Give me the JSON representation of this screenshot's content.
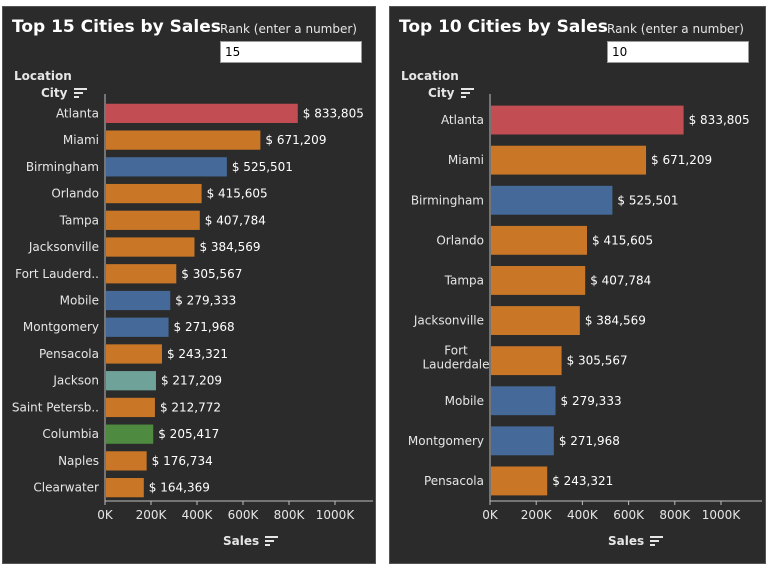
{
  "panels": [
    {
      "title": "Top 15 Cities by Sales",
      "rank_label": "Rank (enter a number)",
      "rank_value": "15",
      "row_header_group": "Location",
      "row_header_field": "City",
      "x_axis_title": "Sales"
    },
    {
      "title": "Top 10 Cities by Sales",
      "rank_label": "Rank (enter a number)",
      "rank_value": "10",
      "row_header_group": "Location",
      "row_header_field": "City",
      "x_axis_title": "Sales"
    }
  ],
  "colors": {
    "Georgia": "#c24d52",
    "Florida": "#c97727",
    "Alabama": "#456a9a",
    "Mississippi": "#6fa39a",
    "South Carolina": "#4e8a40"
  },
  "chart_data": [
    {
      "type": "bar",
      "orientation": "horizontal",
      "title": "Top 15 Cities by Sales",
      "xlabel": "Sales",
      "ylabel": "City",
      "xlim": [
        0,
        1000000
      ],
      "xticks": [
        "0K",
        "200K",
        "400K",
        "600K",
        "800K",
        "1000K"
      ],
      "categories": [
        "Atlanta",
        "Miami",
        "Birmingham",
        "Orlando",
        "Tampa",
        "Jacksonville",
        "Fort Lauderd..",
        "Mobile",
        "Montgomery",
        "Pensacola",
        "Jackson",
        "Saint Petersb..",
        "Columbia",
        "Naples",
        "Clearwater"
      ],
      "values": [
        833805,
        671209,
        525501,
        415605,
        407784,
        384569,
        305567,
        279333,
        271968,
        243321,
        217209,
        212772,
        205417,
        176734,
        164369
      ],
      "data_labels": [
        "$ 833,805",
        "$ 671,209",
        "$ 525,501",
        "$ 415,605",
        "$ 407,784",
        "$ 384,569",
        "$ 305,567",
        "$ 279,333",
        "$ 271,968",
        "$ 243,321",
        "$ 217,209",
        "$ 212,772",
        "$ 205,417",
        "$ 176,734",
        "$ 164,369"
      ],
      "color_groups": [
        "Georgia",
        "Florida",
        "Alabama",
        "Florida",
        "Florida",
        "Florida",
        "Florida",
        "Alabama",
        "Alabama",
        "Florida",
        "Mississippi",
        "Florida",
        "South Carolina",
        "Florida",
        "Florida"
      ]
    },
    {
      "type": "bar",
      "orientation": "horizontal",
      "title": "Top 10 Cities by Sales",
      "xlabel": "Sales",
      "ylabel": "City",
      "xlim": [
        0,
        1000000
      ],
      "xticks": [
        "0K",
        "200K",
        "400K",
        "600K",
        "800K",
        "1000K"
      ],
      "categories": [
        "Atlanta",
        "Miami",
        "Birmingham",
        "Orlando",
        "Tampa",
        "Jacksonville",
        "Fort Lauderdale",
        "Mobile",
        "Montgomery",
        "Pensacola"
      ],
      "values": [
        833805,
        671209,
        525501,
        415605,
        407784,
        384569,
        305567,
        279333,
        271968,
        243321
      ],
      "data_labels": [
        "$ 833,805",
        "$ 671,209",
        "$ 525,501",
        "$ 415,605",
        "$ 407,784",
        "$ 384,569",
        "$ 305,567",
        "$ 279,333",
        "$ 271,968",
        "$ 243,321"
      ],
      "color_groups": [
        "Georgia",
        "Florida",
        "Alabama",
        "Florida",
        "Florida",
        "Florida",
        "Florida",
        "Alabama",
        "Alabama",
        "Florida"
      ]
    }
  ]
}
